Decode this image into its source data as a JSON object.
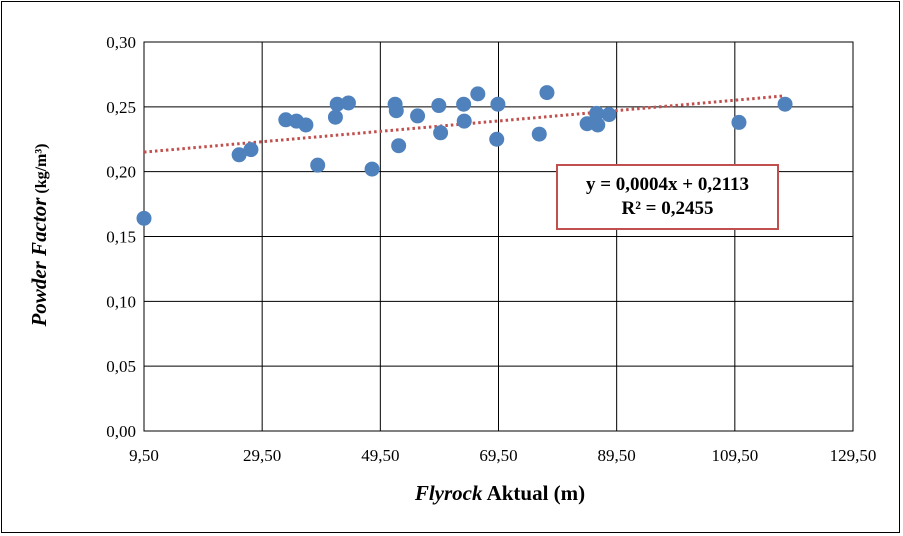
{
  "chart_data": {
    "type": "scatter",
    "title": "",
    "xlabel": {
      "italic_part": "Flyrock",
      "rest": " Aktual (m)"
    },
    "ylabel": {
      "italic_part": "Powder Factor",
      "rest": " (kg/m³)"
    },
    "xlim": [
      9.5,
      129.5
    ],
    "ylim": [
      0.0,
      0.3
    ],
    "x_ticks": [
      "9,50",
      "29,50",
      "49,50",
      "69,50",
      "89,50",
      "109,50",
      "129,50"
    ],
    "y_ticks": [
      "0,00",
      "0,05",
      "0,10",
      "0,15",
      "0,20",
      "0,25",
      "0,30"
    ],
    "grid": true,
    "marker_color": "#4f81bd",
    "trendline_color": "#c0504d",
    "series": [
      {
        "points": [
          {
            "x": 9.5,
            "y": 0.164
          },
          {
            "x": 25.6,
            "y": 0.213
          },
          {
            "x": 27.6,
            "y": 0.217
          },
          {
            "x": 33.5,
            "y": 0.24
          },
          {
            "x": 35.3,
            "y": 0.239
          },
          {
            "x": 36.9,
            "y": 0.236
          },
          {
            "x": 38.9,
            "y": 0.205
          },
          {
            "x": 41.9,
            "y": 0.242
          },
          {
            "x": 42.2,
            "y": 0.252
          },
          {
            "x": 44.1,
            "y": 0.253
          },
          {
            "x": 48.1,
            "y": 0.202
          },
          {
            "x": 52.0,
            "y": 0.252
          },
          {
            "x": 52.2,
            "y": 0.247
          },
          {
            "x": 52.6,
            "y": 0.22
          },
          {
            "x": 55.8,
            "y": 0.243
          },
          {
            "x": 59.4,
            "y": 0.251
          },
          {
            "x": 59.7,
            "y": 0.23
          },
          {
            "x": 63.6,
            "y": 0.252
          },
          {
            "x": 63.7,
            "y": 0.239
          },
          {
            "x": 66.0,
            "y": 0.26
          },
          {
            "x": 69.2,
            "y": 0.225
          },
          {
            "x": 69.4,
            "y": 0.252
          },
          {
            "x": 76.4,
            "y": 0.229
          },
          {
            "x": 77.7,
            "y": 0.261
          },
          {
            "x": 84.5,
            "y": 0.237
          },
          {
            "x": 86.3,
            "y": 0.236
          },
          {
            "x": 86.1,
            "y": 0.245
          },
          {
            "x": 88.2,
            "y": 0.244
          },
          {
            "x": 110.2,
            "y": 0.238
          },
          {
            "x": 118.0,
            "y": 0.252
          }
        ]
      }
    ],
    "trendline": {
      "x_range": [
        9.5,
        117.5
      ],
      "slope": 0.0004,
      "intercept": 0.2113,
      "equation_text": "y = 0,0004x + 0,2113",
      "r2_text": "R² = 0,2455"
    }
  }
}
